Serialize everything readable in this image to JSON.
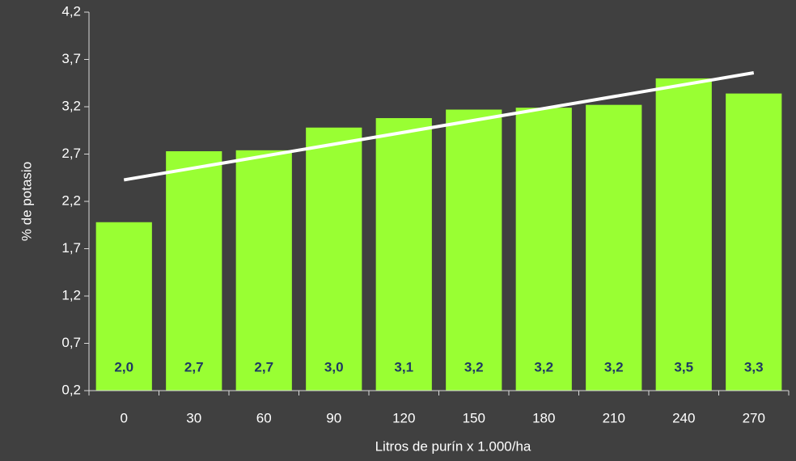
{
  "chart_data": {
    "type": "bar",
    "x_label": "Litros de purín x 1.000/ha",
    "y_label": "% de potasio",
    "categories": [
      "0",
      "30",
      "60",
      "90",
      "120",
      "150",
      "180",
      "210",
      "240",
      "270"
    ],
    "values": [
      1.98,
      2.73,
      2.74,
      2.98,
      3.08,
      3.17,
      3.19,
      3.22,
      3.5,
      3.34
    ],
    "value_labels": [
      "2,0",
      "2,7",
      "2,7",
      "3,0",
      "3,1",
      "3,2",
      "3,2",
      "3,2",
      "3,5",
      "3,3"
    ],
    "color": "#99ff33",
    "trendline": {
      "type": "linear",
      "color": "#ffffff"
    },
    "ylim": [
      0.2,
      4.2
    ],
    "yticks": [
      {
        "value": 0.2,
        "label": "0,2"
      },
      {
        "value": 0.7,
        "label": "0,7"
      },
      {
        "value": 1.2,
        "label": "1,2"
      },
      {
        "value": 1.7,
        "label": "1,7"
      },
      {
        "value": 2.2,
        "label": "2,2"
      },
      {
        "value": 2.7,
        "label": "2,7"
      },
      {
        "value": 3.2,
        "label": "3,2"
      },
      {
        "value": 3.7,
        "label": "3,7"
      },
      {
        "value": 4.2,
        "label": "4,2"
      }
    ]
  }
}
